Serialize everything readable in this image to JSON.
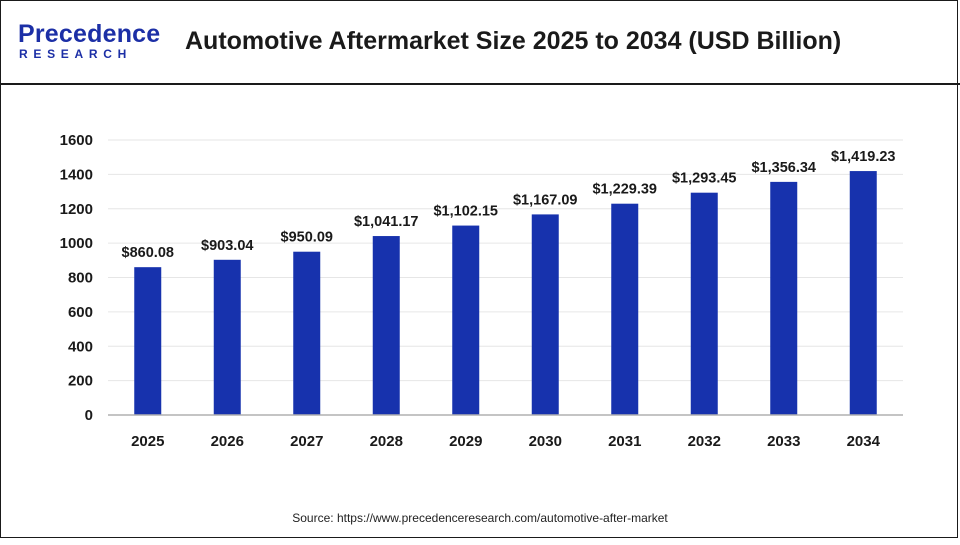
{
  "header": {
    "logo_word": "Precedence",
    "logo_sub": "RESEARCH",
    "title": "Automotive Aftermarket Size 2025 to 2034 (USD Billion)"
  },
  "source": "Source: https://www.precedenceresearch.com/automotive-after-market",
  "colors": {
    "bar": "#1732ad",
    "logo": "#1c2fa6",
    "grid": "#e6e6e6",
    "axis": "#b0b0b0"
  },
  "chart_data": {
    "type": "bar",
    "categories": [
      "2025",
      "2026",
      "2027",
      "2028",
      "2029",
      "2030",
      "2031",
      "2032",
      "2033",
      "2034"
    ],
    "values": [
      860.08,
      903.04,
      950.09,
      1041.17,
      1102.15,
      1167.09,
      1229.39,
      1293.45,
      1356.34,
      1419.23
    ],
    "labels": [
      "$860.08",
      "$903.04",
      "$950.09",
      "$1,041.17",
      "$1,102.15",
      "$1,167.09",
      "$1,229.39",
      "$1,293.45",
      "$1,356.34",
      "$1,419.23"
    ],
    "yticks": [
      "0",
      "200",
      "400",
      "600",
      "800",
      "1000",
      "1200",
      "1400",
      "1600"
    ],
    "ylim": [
      0,
      1600
    ],
    "title": "Automotive Aftermarket Size 2025 to 2034 (USD Billion)",
    "xlabel": "",
    "ylabel": "",
    "grid": true,
    "legend": "none"
  }
}
